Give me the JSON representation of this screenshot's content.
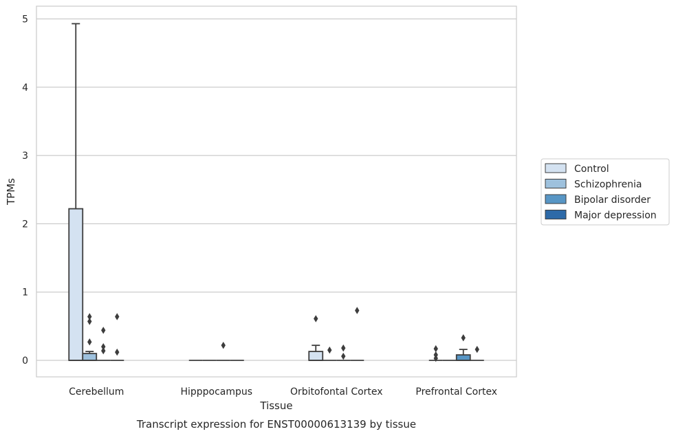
{
  "chart_data": {
    "type": "box",
    "title": "",
    "caption": "Transcript expression for ENST00000613139 by tissue",
    "xlabel": "Tissue",
    "ylabel": "TPMs",
    "ylim": [
      -0.25,
      5.2
    ],
    "yticks": [
      0,
      1,
      2,
      3,
      4,
      5
    ],
    "grid": true,
    "legend_position": "right",
    "categories": [
      "Cerebellum",
      "Hipppocampus",
      "Orbitofontal Cortex",
      "Prefrontal Cortex"
    ],
    "series": [
      {
        "name": "Control",
        "color": "#d4e2f1",
        "boxes": [
          {
            "q1": 0,
            "median": 0,
            "q3": 2.22,
            "whisker_low": 0,
            "whisker_high": 4.93,
            "outliers": []
          },
          {
            "q1": 0,
            "median": 0,
            "q3": 0,
            "whisker_low": 0,
            "whisker_high": 0,
            "outliers": []
          },
          {
            "q1": 0,
            "median": 0,
            "q3": 0.13,
            "whisker_low": 0,
            "whisker_high": 0.22,
            "outliers": [
              0.61
            ]
          },
          {
            "q1": 0,
            "median": 0,
            "q3": 0,
            "whisker_low": 0,
            "whisker_high": 0,
            "outliers": [
              0.03,
              0.08,
              0.17
            ]
          }
        ]
      },
      {
        "name": "Schizophrenia",
        "color": "#9ec1dd",
        "boxes": [
          {
            "q1": 0,
            "median": 0,
            "q3": 0.1,
            "whisker_low": 0,
            "whisker_high": 0.13,
            "outliers": [
              0.27,
              0.57,
              0.64
            ]
          },
          {
            "q1": 0,
            "median": 0,
            "q3": 0,
            "whisker_low": 0,
            "whisker_high": 0,
            "outliers": []
          },
          {
            "q1": 0,
            "median": 0,
            "q3": 0,
            "whisker_low": 0,
            "whisker_high": 0,
            "outliers": [
              0.15
            ]
          },
          {
            "q1": 0,
            "median": 0,
            "q3": 0,
            "whisker_low": 0,
            "whisker_high": 0,
            "outliers": []
          }
        ]
      },
      {
        "name": "Bipolar disorder",
        "color": "#5896c5",
        "boxes": [
          {
            "q1": 0,
            "median": 0,
            "q3": 0,
            "whisker_low": 0,
            "whisker_high": 0,
            "outliers": [
              0.14,
              0.2,
              0.44
            ]
          },
          {
            "q1": 0,
            "median": 0,
            "q3": 0,
            "whisker_low": 0,
            "whisker_high": 0,
            "outliers": [
              0.22
            ]
          },
          {
            "q1": 0,
            "median": 0,
            "q3": 0,
            "whisker_low": 0,
            "whisker_high": 0,
            "outliers": [
              0.06,
              0.18
            ]
          },
          {
            "q1": 0,
            "median": 0,
            "q3": 0.08,
            "whisker_low": 0,
            "whisker_high": 0.16,
            "outliers": [
              0.33
            ]
          }
        ]
      },
      {
        "name": "Major depression",
        "color": "#2d6aa8",
        "boxes": [
          {
            "q1": 0,
            "median": 0,
            "q3": 0,
            "whisker_low": 0,
            "whisker_high": 0,
            "outliers": [
              0.12,
              0.64
            ]
          },
          {
            "q1": 0,
            "median": 0,
            "q3": 0,
            "whisker_low": 0,
            "whisker_high": 0,
            "outliers": []
          },
          {
            "q1": 0,
            "median": 0,
            "q3": 0,
            "whisker_low": 0,
            "whisker_high": 0,
            "outliers": [
              0.73
            ]
          },
          {
            "q1": 0,
            "median": 0,
            "q3": 0,
            "whisker_low": 0,
            "whisker_high": 0,
            "outliers": [
              0.16
            ]
          }
        ]
      }
    ]
  }
}
